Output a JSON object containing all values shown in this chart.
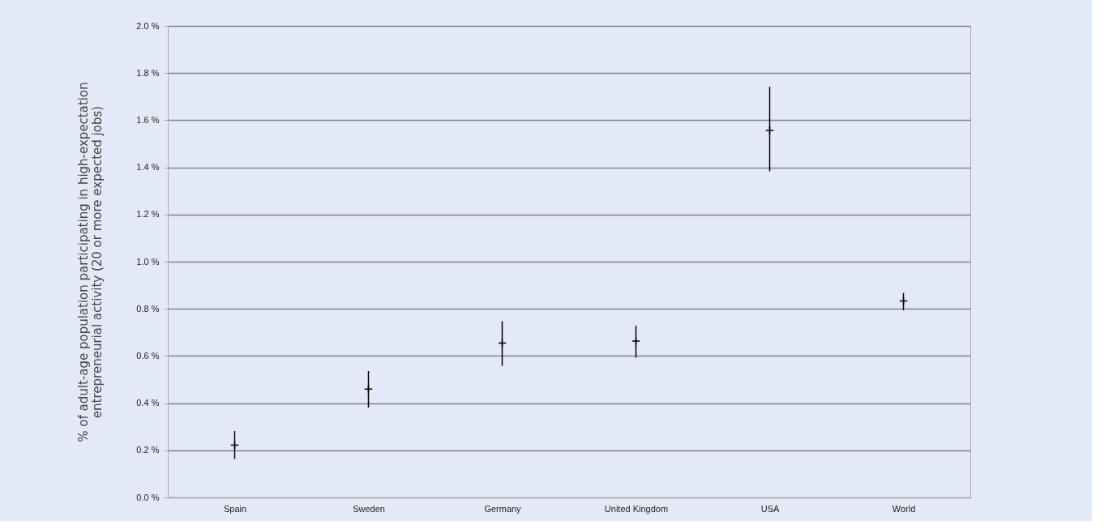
{
  "chart_data": {
    "type": "scatter",
    "ylabel": "% of adult-age population participating in high-expectation\nentrepreneurial activity (20 or more expected jobs)",
    "categories": [
      "Spain",
      "Sweden",
      "Germany",
      "United Kingdom",
      "USA",
      "World"
    ],
    "values": [
      0.222,
      0.46,
      0.655,
      0.663,
      1.557,
      0.833
    ],
    "errors": [
      [
        0.163,
        0.282
      ],
      [
        0.381,
        0.536
      ],
      [
        0.558,
        0.747
      ],
      [
        0.593,
        0.729
      ],
      [
        1.383,
        1.742
      ],
      [
        0.794,
        0.867
      ]
    ],
    "color": "#000000",
    "ylim": [
      0,
      2.0
    ],
    "yticks": [
      {
        "value": 0,
        "label": "0.0 %"
      },
      {
        "value": 0.2,
        "label": "0.2 %"
      },
      {
        "value": 0.4,
        "label": "0.4 %"
      },
      {
        "value": 0.6,
        "label": "0.6 %"
      },
      {
        "value": 0.8,
        "label": "0.8 %"
      },
      {
        "value": 1.0,
        "label": "1.0 %"
      },
      {
        "value": 1.2,
        "label": "1.2 %"
      },
      {
        "value": 1.4,
        "label": "1.4 %"
      },
      {
        "value": 1.6,
        "label": "1.6 %"
      },
      {
        "value": 1.8,
        "label": "1.8 %"
      },
      {
        "value": 2.0,
        "label": "2.0 %"
      }
    ],
    "grid": "y",
    "marker": "cross"
  }
}
